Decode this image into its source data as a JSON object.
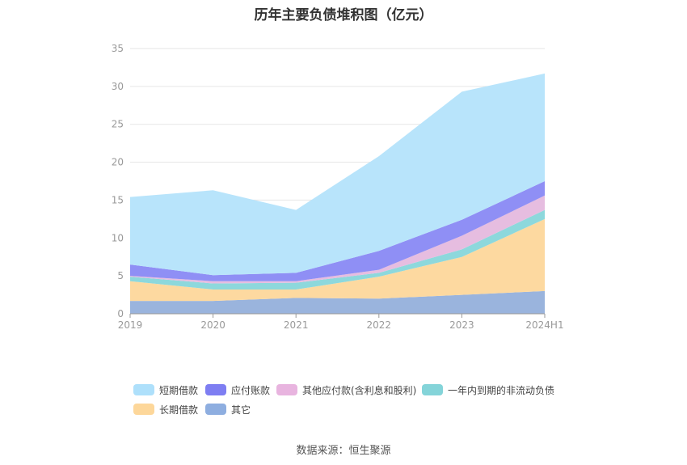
{
  "title": "历年主要负债堆积图（亿元）",
  "source": "数据来源：恒生聚源",
  "chart_data": {
    "type": "area",
    "stacked": true,
    "title": "历年主要负债堆积图（亿元）",
    "categories": [
      "2019",
      "2020",
      "2021",
      "2022",
      "2023",
      "2024H1"
    ],
    "ylim": [
      0,
      35
    ],
    "yticks": [
      0,
      5,
      10,
      15,
      20,
      25,
      30,
      35
    ],
    "grid": true,
    "legend_position": "bottom",
    "series": [
      {
        "name": "其它",
        "color": "#9ab4dd",
        "values": [
          1.7,
          1.7,
          2.1,
          2.0,
          2.5,
          3.0
        ]
      },
      {
        "name": "长期借款",
        "color": "#fdd9a0",
        "values": [
          2.6,
          1.5,
          1.1,
          2.9,
          5.0,
          9.5
        ]
      },
      {
        "name": "一年内到期的非流动负债",
        "color": "#8dd8dc",
        "values": [
          0.6,
          0.8,
          0.9,
          0.5,
          1.0,
          1.2
        ]
      },
      {
        "name": "其他应付款(含利息和股利)",
        "color": "#e6bde0",
        "values": [
          0.1,
          0.3,
          0.2,
          0.4,
          1.8,
          1.9
        ]
      },
      {
        "name": "应付账款",
        "color": "#8f8ff5",
        "values": [
          1.5,
          0.8,
          1.1,
          2.5,
          2.1,
          1.9
        ]
      },
      {
        "name": "短期借款",
        "color": "#b8e4fb",
        "values": [
          8.9,
          11.2,
          8.3,
          12.5,
          16.9,
          14.2
        ]
      }
    ]
  },
  "legend": [
    {
      "label": "短期借款",
      "color": "#aee0fb"
    },
    {
      "label": "应付账款",
      "color": "#7e7ef2"
    },
    {
      "label": "其他应付款(含利息和股利)",
      "color": "#e8b4df"
    },
    {
      "label": "一年内到期的非流动负债",
      "color": "#84d4d9"
    },
    {
      "label": "长期借款",
      "color": "#fdd79a"
    },
    {
      "label": "其它",
      "color": "#8eaee0"
    }
  ]
}
